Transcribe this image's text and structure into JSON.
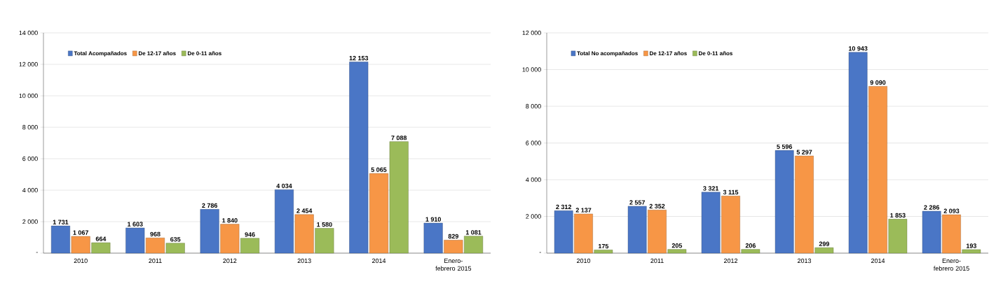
{
  "chart_data": [
    {
      "type": "bar",
      "categories": [
        "2010",
        "2011",
        "2012",
        "2013",
        "2014",
        "Enero-febrero 2015"
      ],
      "series": [
        {
          "name": "Total Acompañados",
          "color": "#4a76c6",
          "values": [
            1731,
            1603,
            2786,
            4034,
            12153,
            1910
          ],
          "value_labels": [
            "1 731",
            "1 603",
            "2 786",
            "4 034",
            "12 153",
            "1 910"
          ]
        },
        {
          "name": "De 12-17 años",
          "color": "#f79646",
          "values": [
            1067,
            968,
            1840,
            2454,
            5065,
            829
          ],
          "value_labels": [
            "1 067",
            "968",
            "1 840",
            "2 454",
            "5 065",
            "829"
          ]
        },
        {
          "name": "De 0-11 años",
          "color": "#9bbb59",
          "values": [
            664,
            635,
            946,
            1580,
            7088,
            1081
          ],
          "value_labels": [
            "664",
            "635",
            "946",
            "1 580",
            "7 088",
            "1 081"
          ]
        }
      ],
      "ylim": [
        0,
        14000
      ],
      "yticks": [
        {
          "value": 0,
          "label": "-"
        },
        {
          "value": 2000,
          "label": "2 000"
        },
        {
          "value": 4000,
          "label": "4 000"
        },
        {
          "value": 6000,
          "label": "6 000"
        },
        {
          "value": 8000,
          "label": "8 000"
        },
        {
          "value": 10000,
          "label": "10 000"
        },
        {
          "value": 12000,
          "label": "12 000"
        },
        {
          "value": 14000,
          "label": "14 000"
        }
      ],
      "grid": "y",
      "legend": "top left"
    },
    {
      "type": "bar",
      "categories": [
        "2010",
        "2011",
        "2012",
        "2013",
        "2014",
        "Enero-febrero 2015"
      ],
      "series": [
        {
          "name": "Total No acompañados",
          "color": "#4a76c6",
          "values": [
            2312,
            2557,
            3321,
            5596,
            10943,
            2286
          ],
          "value_labels": [
            "2 312",
            "2 557",
            "3 321",
            "5 596",
            "10 943",
            "2 286"
          ]
        },
        {
          "name": "De 12-17 años",
          "color": "#f79646",
          "values": [
            2137,
            2352,
            3115,
            5297,
            9090,
            2093
          ],
          "value_labels": [
            "2 137",
            "2 352",
            "3 115",
            "5 297",
            "9 090",
            "2 093"
          ]
        },
        {
          "name": "De 0-11 años",
          "color": "#9bbb59",
          "values": [
            175,
            205,
            206,
            299,
            1853,
            193
          ],
          "value_labels": [
            "175",
            "205",
            "206",
            "299",
            "1 853",
            "193"
          ]
        }
      ],
      "ylim": [
        0,
        12000
      ],
      "yticks": [
        {
          "value": 0,
          "label": "-"
        },
        {
          "value": 2000,
          "label": "2 000"
        },
        {
          "value": 4000,
          "label": "4 000"
        },
        {
          "value": 6000,
          "label": "6 000"
        },
        {
          "value": 8000,
          "label": "8 000"
        },
        {
          "value": 10000,
          "label": "10 000"
        },
        {
          "value": 12000,
          "label": "12 000"
        }
      ],
      "grid": "y",
      "legend": "top left"
    }
  ]
}
